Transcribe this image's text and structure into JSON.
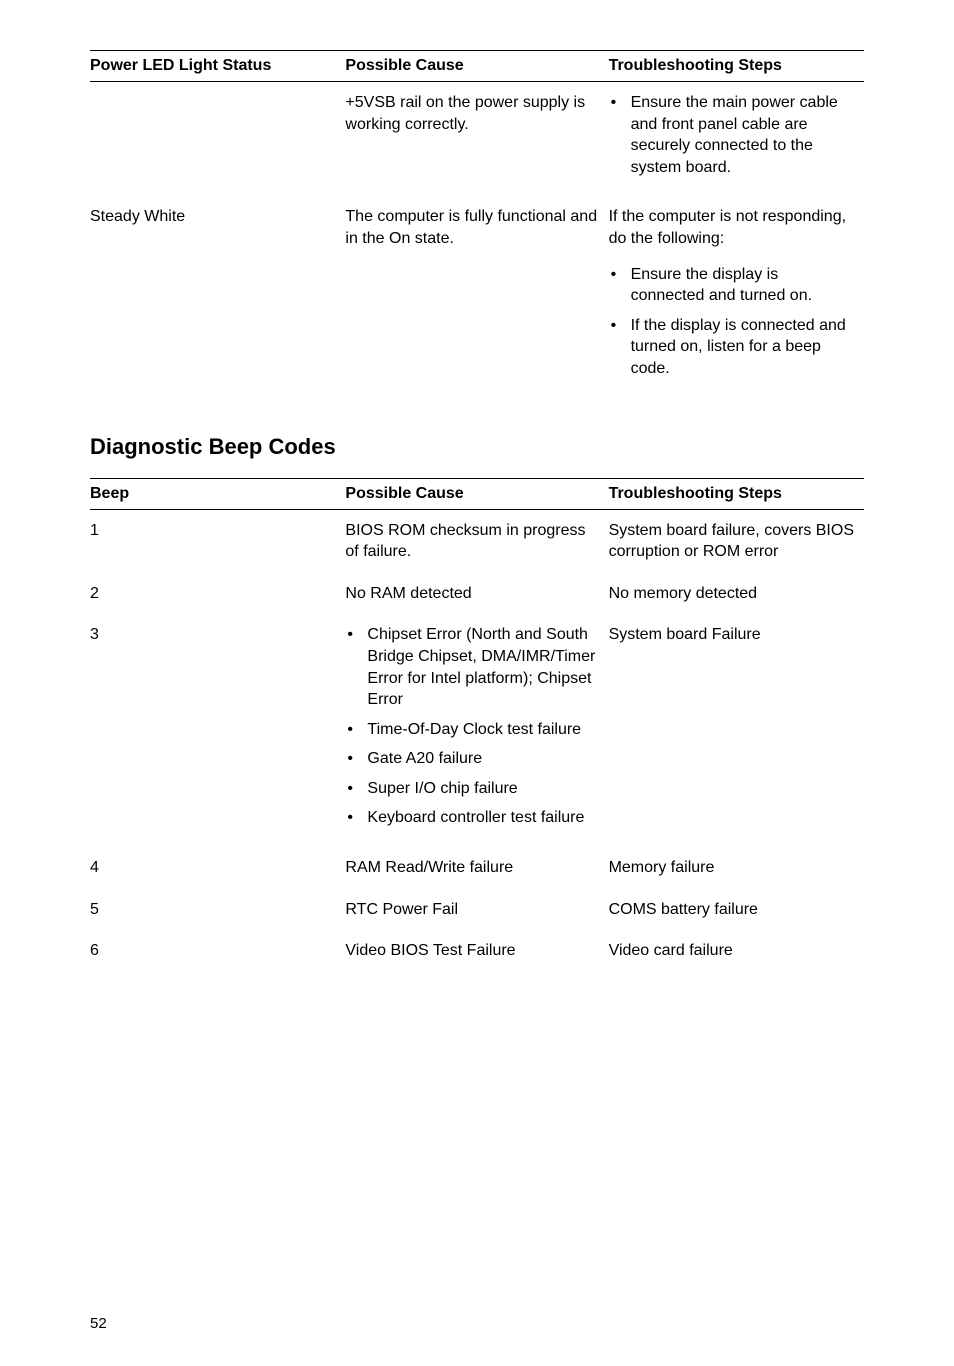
{
  "table1": {
    "headers": [
      "Power LED Light Status",
      "Possible Cause",
      "Troubleshooting Steps"
    ],
    "rows": [
      {
        "status": "",
        "cause": "+5VSB rail on the power supply is working correctly.",
        "steps_list": [
          "Ensure the main power cable and front panel cable are securely connected to the system board."
        ]
      },
      {
        "status": "Steady White",
        "cause": "The computer is fully functional and in the On state.",
        "steps_text": "If the computer is not responding, do the following:",
        "steps_list": [
          "Ensure the display is connected and turned on.",
          "If the display is connected and turned on, listen for a beep code."
        ]
      }
    ]
  },
  "section_title": "Diagnostic Beep Codes",
  "table2": {
    "headers": [
      "Beep",
      "Possible Cause",
      "Troubleshooting Steps"
    ],
    "rows": [
      {
        "beep": "1",
        "cause_text": "BIOS ROM checksum in progress of failure.",
        "steps": "System board failure, covers BIOS corruption or ROM error"
      },
      {
        "beep": "2",
        "cause_text": "No RAM detected",
        "steps": "No memory detected"
      },
      {
        "beep": "3",
        "cause_list": [
          "Chipset Error (North and South Bridge Chipset, DMA/IMR/Timer Error for Intel platform); Chipset Error",
          "Time-Of-Day Clock test failure",
          "Gate A20 failure",
          "Super I/O chip failure",
          "Keyboard controller test failure"
        ],
        "steps": "System board Failure"
      },
      {
        "beep": "4",
        "cause_text": "RAM Read/Write failure",
        "steps": "Memory failure"
      },
      {
        "beep": "5",
        "cause_text": "RTC Power Fail",
        "steps": "COMS battery failure"
      },
      {
        "beep": "6",
        "cause_text": "Video BIOS Test Failure",
        "steps": "Video card failure"
      }
    ]
  },
  "page_number": "52"
}
